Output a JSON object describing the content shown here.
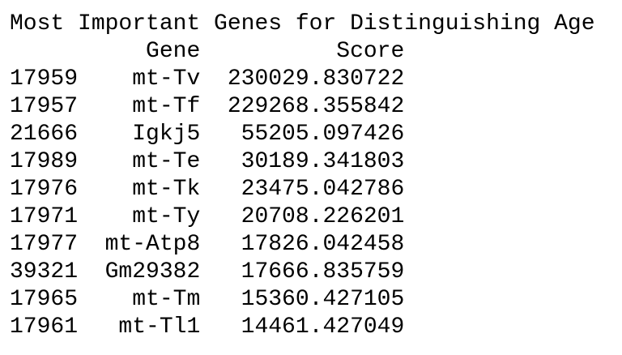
{
  "title": "Most Important Genes for Distinguishing Age",
  "table": {
    "columns": [
      "Gene",
      "Score"
    ],
    "rows": [
      [
        "17959",
        "mt-Tv",
        "230029.830722"
      ],
      [
        "17957",
        "mt-Tf",
        "229268.355842"
      ],
      [
        "21666",
        "Igkj5",
        "55205.097426"
      ],
      [
        "17989",
        "mt-Te",
        "30189.341803"
      ],
      [
        "17976",
        "mt-Tk",
        "23475.042786"
      ],
      [
        "17971",
        "mt-Ty",
        "20708.226201"
      ],
      [
        "17977",
        "mt-Atp8",
        "17826.042458"
      ],
      [
        "39321",
        "Gm29382",
        "17666.835759"
      ],
      [
        "17965",
        "mt-Tm",
        "15360.427105"
      ],
      [
        "17961",
        "mt-Tl1",
        "14461.427049"
      ]
    ]
  }
}
